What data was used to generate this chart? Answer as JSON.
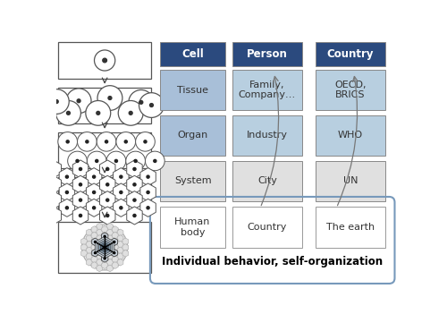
{
  "header_color": "#2b4a7e",
  "header_text_color": "#ffffff",
  "cell_blue": "#a8bfd8",
  "person_blue": "#b8cfe0",
  "country_blue": "#b8cfe0",
  "light_gray": "#e0e0e0",
  "white": "#ffffff",
  "bg_color": "#ffffff",
  "headers": [
    "Cell",
    "Person",
    "Country"
  ],
  "col1": [
    "Tissue",
    "Organ",
    "System",
    "Human\nbody"
  ],
  "col2": [
    "Family,\nCompany…",
    "Industry",
    "City",
    "Country"
  ],
  "col3": [
    "OECD,\nBRICS",
    "WHO",
    "UN",
    "The earth"
  ],
  "bottom_text": "Individual behavior, self-organization",
  "fig_width": 5.0,
  "fig_height": 3.7,
  "dpi": 100
}
